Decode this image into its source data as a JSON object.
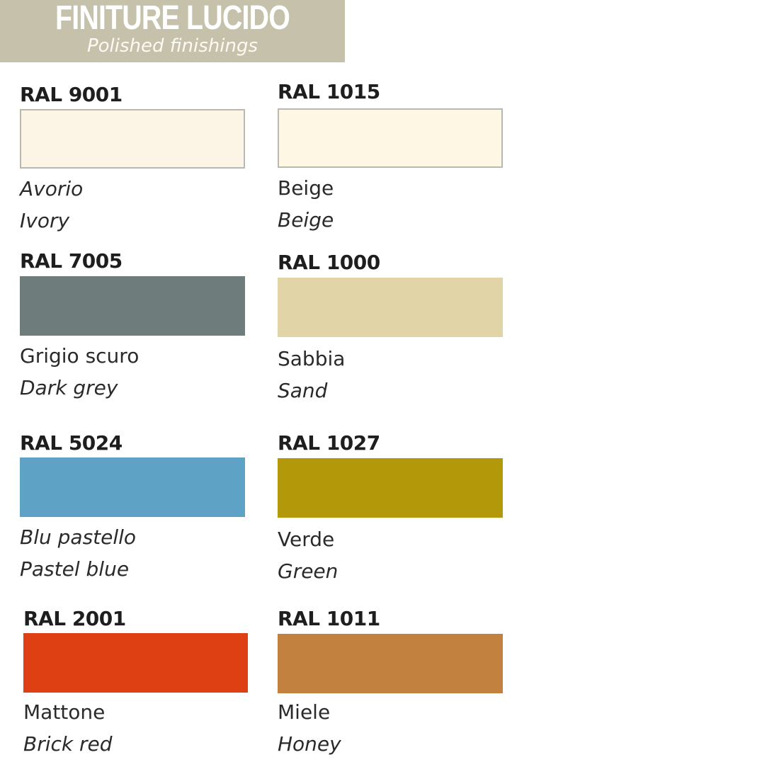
{
  "header": {
    "title": "FINITURE LUCIDO",
    "subtitle": "Polished finishings",
    "background": "#c6c1aa"
  },
  "colors": [
    {
      "code": "RAL 9001",
      "italian": "Avorio",
      "english": "Ivory",
      "hex": "#fcf5e6",
      "italian_italic": true
    },
    {
      "code": "RAL 1015",
      "italian": "Beige",
      "english": "Beige",
      "hex": "#fef7e4",
      "italian_italic": false
    },
    {
      "code": "RAL 7005",
      "italian": "Grigio scuro",
      "english": "Dark grey",
      "hex": "#6e7c7c",
      "italian_italic": false
    },
    {
      "code": "RAL 1000",
      "italian": "Sabbia",
      "english": "Sand",
      "hex": "#e1d4a6",
      "italian_italic": false
    },
    {
      "code": "RAL 5024",
      "italian": "Blu pastello",
      "english": "Pastel blue",
      "hex": "#5ea2c5",
      "italian_italic": true
    },
    {
      "code": "RAL 1027",
      "italian": "Verde",
      "english": "Green",
      "hex": "#b3990a",
      "italian_italic": false
    },
    {
      "code": "RAL 2001",
      "italian": "Mattone",
      "english": "Brick red",
      "hex": "#de4014",
      "italian_italic": false
    },
    {
      "code": "RAL 1011",
      "italian": "Miele",
      "english": "Honey",
      "hex": "#c2813e",
      "italian_italic": false
    }
  ]
}
